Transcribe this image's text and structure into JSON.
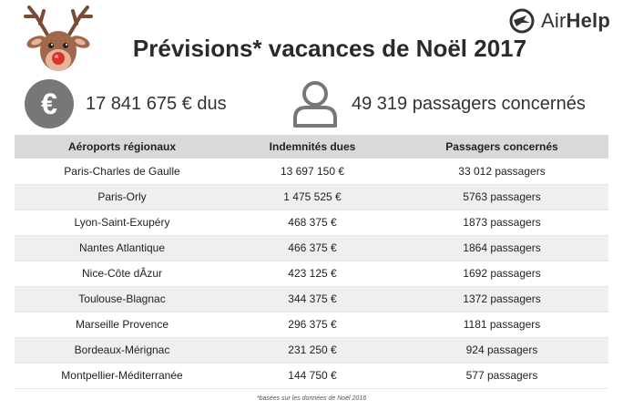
{
  "brand": {
    "name_prefix": "Air",
    "name_suffix": "Help",
    "accent": "#333333"
  },
  "title": "Prévisions* vacances de Noël 2017",
  "stats": {
    "compensation": {
      "icon": "euro-icon",
      "text": "17 841 675 € dus"
    },
    "passengers": {
      "icon": "person-icon",
      "text": "49 319 passagers concernés"
    }
  },
  "table": {
    "headers": [
      "Aéroports régionaux",
      "Indemnités dues",
      "Passagers concernés"
    ],
    "rows": [
      [
        "Paris-Charles de Gaulle",
        "13 697 150 €",
        "33 012 passagers"
      ],
      [
        "Paris-Orly",
        "1 475 525 €",
        "5763 passagers"
      ],
      [
        "Lyon-Saint-Exupéry",
        "468 375 €",
        "1873 passagers"
      ],
      [
        "Nantes Atlantique",
        "466 375 €",
        "1864 passagers"
      ],
      [
        "Nice-Côte dÂzur",
        "423 125 €",
        "1692 passagers"
      ],
      [
        "Toulouse-Blagnac",
        "344 375 €",
        "1372 passagers"
      ],
      [
        "Marseille Provence",
        "296 375 €",
        "1181 passagers"
      ],
      [
        "Bordeaux-Mérignac",
        "231 250 €",
        "924 passagers"
      ],
      [
        "Montpellier-Méditerranée",
        "144 750 €",
        "577 passagers"
      ]
    ]
  },
  "footnote": "*basées sur les données de Noël 2016",
  "colors": {
    "header_bg": "#d9d9d9",
    "stripe_bg": "#efefef",
    "icon_gray": "#777777",
    "reindeer_brown": "#a0674a",
    "nose_red": "#d9342b"
  }
}
